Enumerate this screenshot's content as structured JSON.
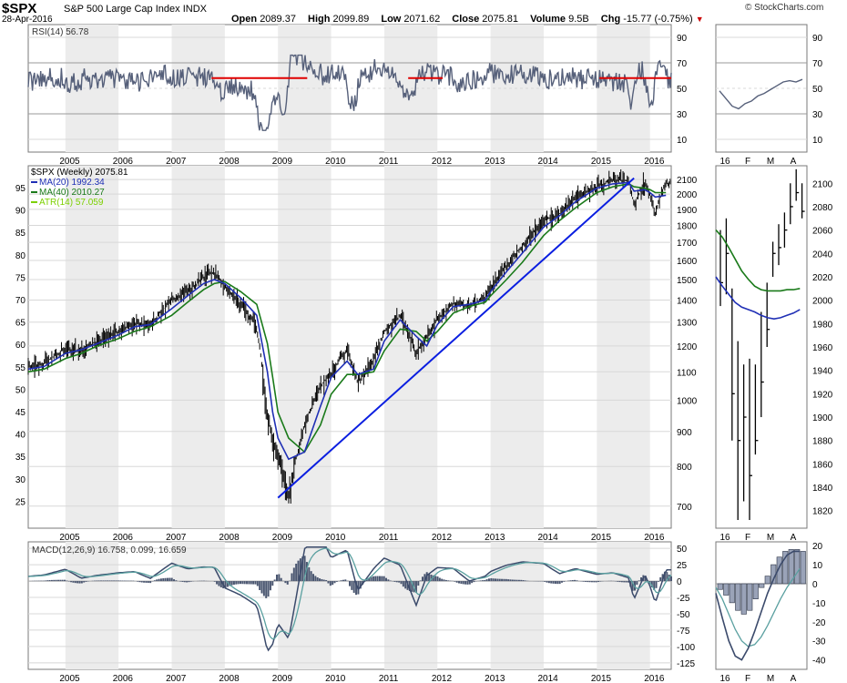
{
  "header": {
    "symbol": "$SPX",
    "name": "S&P 500 Large Cap Index",
    "exchange": "INDX",
    "date": "28-Apr-2016",
    "open_label": "Open",
    "open": "2089.37",
    "high_label": "High",
    "high": "2099.89",
    "low_label": "Low",
    "low": "2071.62",
    "close_label": "Close",
    "close": "2075.81",
    "volume_label": "Volume",
    "volume": "9.5B",
    "chg_label": "Chg",
    "chg": "-15.77 (-0.75%)",
    "brand": "© StockCharts.com"
  },
  "colors": {
    "price": "#000000",
    "ma20": "#1f2fb5",
    "ma40": "#1a7a1a",
    "atr": "#7cd000",
    "rsi": "#56607a",
    "resistance": "#e00000",
    "trendline": "#0a1ee0",
    "macd_line": "#3b4a6b",
    "signal_line": "#5aa0a0",
    "histogram": "#4a5670",
    "grid": "#d8d8d8",
    "shade": "#ececec"
  },
  "chart_data": [
    {
      "type": "line",
      "name": "RSI main",
      "legend": "RSI(14) 56.78",
      "y_ticks": [
        "90",
        "70",
        "50",
        "30",
        "10"
      ],
      "ylim": [
        0,
        100
      ],
      "overbought": 70,
      "oversold": 30,
      "x_labels": [
        "2005",
        "2006",
        "2007",
        "2008",
        "2009",
        "2010",
        "2011",
        "2012",
        "2013",
        "2014",
        "2015",
        "2016"
      ],
      "resistance_level": 58
    },
    {
      "type": "line",
      "name": "Price main",
      "title": "$SPX (Weekly) 2075.81",
      "legend": [
        "MA(20) 1992.34",
        "MA(40) 2010.27",
        "ATR(14) 57.059"
      ],
      "y_ticks_right": [
        "2100",
        "2000",
        "1900",
        "1800",
        "1700",
        "1600",
        "1500",
        "1400",
        "1300",
        "1200",
        "1100",
        "1000",
        "900",
        "800",
        "700"
      ],
      "y_ticks_left": [
        "95",
        "90",
        "85",
        "80",
        "75",
        "70",
        "65",
        "60",
        "55",
        "50",
        "45",
        "40",
        "35",
        "30",
        "25"
      ],
      "x_labels": [
        "2005",
        "2006",
        "2007",
        "2008",
        "2009",
        "2010",
        "2011",
        "2012",
        "2013",
        "2014",
        "2015",
        "2016"
      ],
      "yscale": "log",
      "ylim": [
        650,
        2200
      ],
      "x": [
        2004.3,
        2004.6,
        2005.0,
        2005.3,
        2005.6,
        2006.0,
        2006.3,
        2006.6,
        2007.0,
        2007.3,
        2007.6,
        2007.8,
        2008.0,
        2008.3,
        2008.6,
        2008.8,
        2008.9,
        2009.0,
        2009.2,
        2009.5,
        2009.8,
        2010.0,
        2010.3,
        2010.5,
        2010.8,
        2011.0,
        2011.3,
        2011.6,
        2011.8,
        2012.0,
        2012.3,
        2012.6,
        2012.9,
        2013.0,
        2013.3,
        2013.6,
        2014.0,
        2014.3,
        2014.6,
        2015.0,
        2015.3,
        2015.6,
        2015.7,
        2015.9,
        2016.0,
        2016.1,
        2016.3
      ],
      "close": [
        1115,
        1130,
        1190,
        1180,
        1220,
        1260,
        1295,
        1290,
        1400,
        1440,
        1510,
        1540,
        1460,
        1380,
        1280,
        960,
        880,
        840,
        730,
        920,
        1050,
        1090,
        1190,
        1060,
        1140,
        1260,
        1330,
        1170,
        1240,
        1310,
        1390,
        1370,
        1410,
        1460,
        1570,
        1680,
        1830,
        1870,
        1980,
        2050,
        2100,
        2090,
        1940,
        2080,
        2000,
        1880,
        2076
      ],
      "ma20": [
        1110,
        1120,
        1170,
        1185,
        1210,
        1245,
        1280,
        1290,
        1360,
        1420,
        1480,
        1500,
        1480,
        1410,
        1330,
        1100,
        960,
        880,
        820,
        840,
        980,
        1080,
        1140,
        1090,
        1110,
        1220,
        1310,
        1240,
        1200,
        1290,
        1370,
        1380,
        1400,
        1440,
        1540,
        1640,
        1790,
        1860,
        1950,
        2040,
        2070,
        2080,
        2020,
        2030,
        2010,
        1980,
        1992
      ],
      "ma40": [
        1100,
        1110,
        1150,
        1170,
        1200,
        1230,
        1260,
        1280,
        1330,
        1390,
        1450,
        1480,
        1490,
        1440,
        1380,
        1210,
        1080,
        960,
        880,
        840,
        920,
        1020,
        1090,
        1090,
        1100,
        1180,
        1270,
        1260,
        1220,
        1260,
        1340,
        1370,
        1390,
        1420,
        1500,
        1590,
        1740,
        1830,
        1910,
        2010,
        2050,
        2070,
        2050,
        2040,
        2030,
        2010,
        2010
      ],
      "trendline": [
        {
          "x": 2009.0,
          "y": 720
        },
        {
          "x": 2015.7,
          "y": 2110
        }
      ]
    },
    {
      "type": "bar",
      "name": "MACD main",
      "legend": "MACD(12,26,9) 16.758, 0.099, 16.659",
      "y_ticks": [
        "50",
        "25",
        "0",
        "-25",
        "-50",
        "-75",
        "-100",
        "-125"
      ],
      "ylim": [
        -135,
        60
      ],
      "x_labels": [
        "2005",
        "2006",
        "2007",
        "2008",
        "2009",
        "2010",
        "2011",
        "2012",
        "2013",
        "2014",
        "2015",
        "2016"
      ]
    },
    {
      "type": "line",
      "name": "RSI zoom",
      "y_ticks": [
        "90",
        "70",
        "50",
        "30",
        "10"
      ],
      "x_labels": [
        "16",
        "F",
        "M",
        "A"
      ]
    },
    {
      "type": "line",
      "name": "Price zoom",
      "y_ticks": [
        "2100",
        "2080",
        "2060",
        "2040",
        "2020",
        "2000",
        "1980",
        "1960",
        "1940",
        "1920",
        "1900",
        "1880",
        "1860",
        "1840",
        "1820"
      ],
      "ylim": [
        1805,
        2115
      ],
      "x_labels": [
        "16",
        "F",
        "M",
        "A"
      ]
    },
    {
      "type": "bar",
      "name": "MACD zoom",
      "y_ticks": [
        "20",
        "10",
        "0",
        "-10",
        "-20",
        "-30",
        "-40"
      ],
      "ylim": [
        -45,
        22
      ],
      "x_labels": [
        "16",
        "F",
        "M",
        "A"
      ]
    }
  ]
}
